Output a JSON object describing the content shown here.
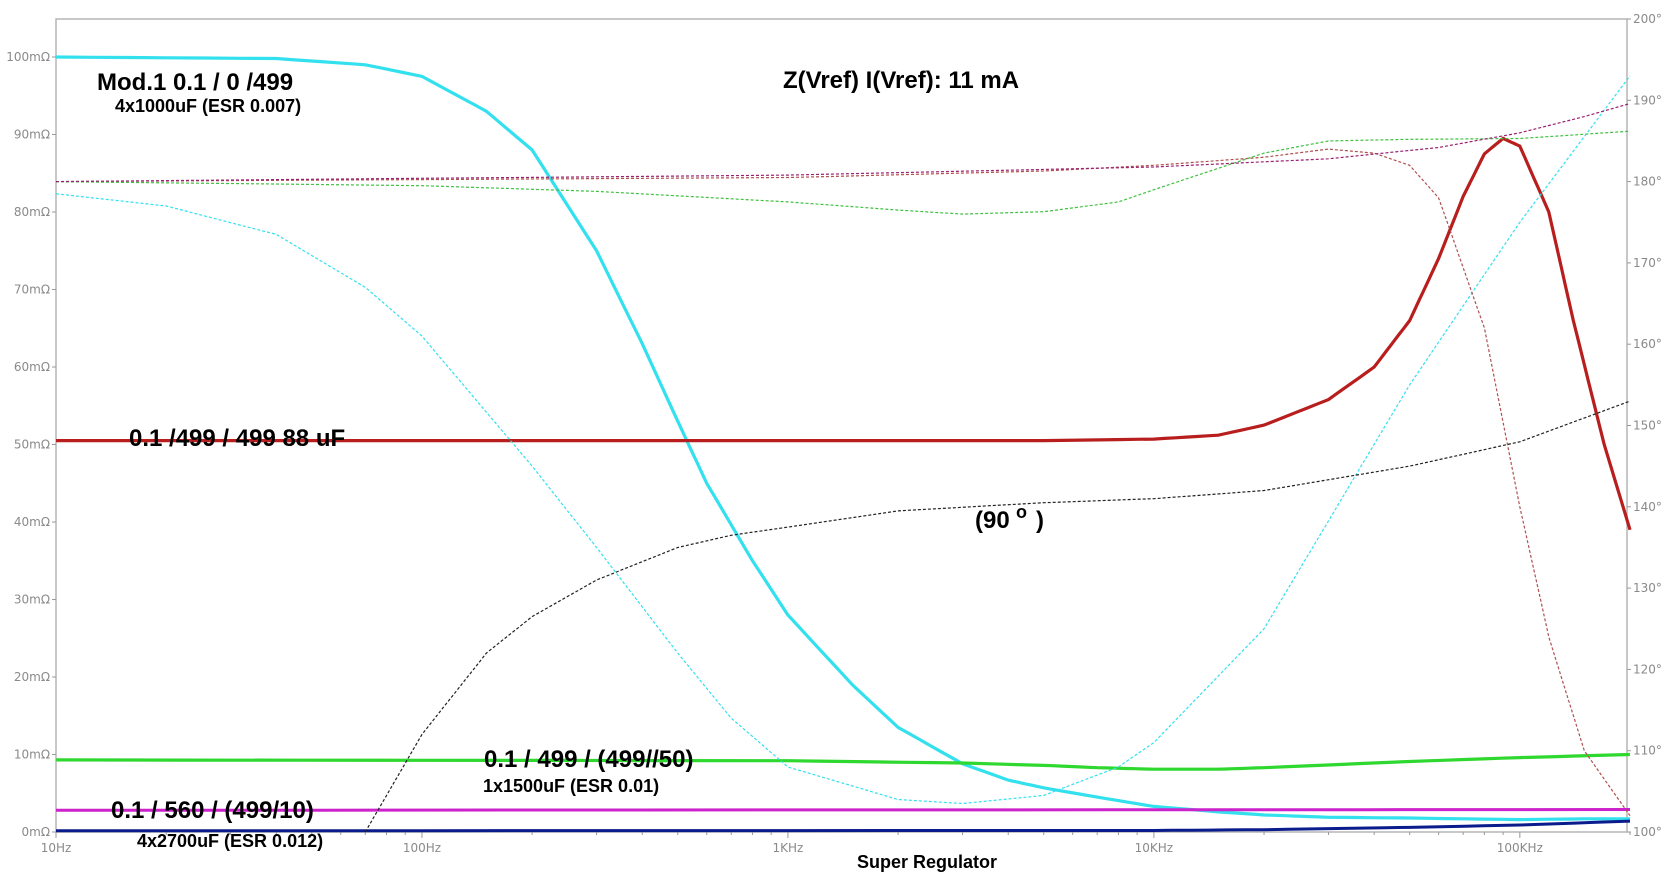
{
  "chart_data": {
    "type": "line",
    "title": "Z(Vref)  I(Vref):  11 mA",
    "x_scale": "log",
    "x_range_hz": [
      10,
      200000
    ],
    "x_ticks": [
      {
        "value": 10,
        "label": "10Hz"
      },
      {
        "value": 100,
        "label": "100Hz"
      },
      {
        "value": 1000,
        "label": "1KHz"
      },
      {
        "value": 10000,
        "label": "10KHz"
      },
      {
        "value": 100000,
        "label": "100KHz"
      }
    ],
    "y_left_range_mohm": [
      0,
      100
    ],
    "y_left_ticks": [
      {
        "value": 0,
        "label": "0mΩ"
      },
      {
        "value": 10,
        "label": "10mΩ"
      },
      {
        "value": 20,
        "label": "20mΩ"
      },
      {
        "value": 30,
        "label": "30mΩ"
      },
      {
        "value": 40,
        "label": "40mΩ"
      },
      {
        "value": 50,
        "label": "50mΩ"
      },
      {
        "value": 60,
        "label": "60mΩ"
      },
      {
        "value": 70,
        "label": "70mΩ"
      },
      {
        "value": 80,
        "label": "80mΩ"
      },
      {
        "value": 90,
        "label": "90mΩ"
      },
      {
        "value": 100,
        "label": "100mΩ"
      }
    ],
    "y_right_range_deg": [
      100,
      200
    ],
    "y_right_ticks": [
      {
        "value": 100,
        "label": "100°"
      },
      {
        "value": 110,
        "label": "110°"
      },
      {
        "value": 120,
        "label": "120°"
      },
      {
        "value": 130,
        "label": "130°"
      },
      {
        "value": 140,
        "label": "140°"
      },
      {
        "value": 150,
        "label": "150°"
      },
      {
        "value": 160,
        "label": "160°"
      },
      {
        "value": 170,
        "label": "170°"
      },
      {
        "value": 180,
        "label": "180°"
      },
      {
        "value": 190,
        "label": "190°"
      },
      {
        "value": 200,
        "label": "200°"
      }
    ],
    "grid": false,
    "series": [
      {
        "key": "cyan_mag",
        "axis": "left",
        "style": "solid",
        "color": "#33e0ee",
        "points": [
          [
            10,
            100
          ],
          [
            40,
            99.8
          ],
          [
            70,
            99
          ],
          [
            100,
            97.5
          ],
          [
            150,
            93
          ],
          [
            200,
            88
          ],
          [
            300,
            75
          ],
          [
            400,
            63
          ],
          [
            500,
            53
          ],
          [
            600,
            45
          ],
          [
            800,
            35
          ],
          [
            1000,
            28
          ],
          [
            1500,
            19
          ],
          [
            2000,
            13.5
          ],
          [
            3000,
            8.8
          ],
          [
            4000,
            6.7
          ],
          [
            5000,
            5.7
          ],
          [
            7000,
            4.5
          ],
          [
            10000,
            3.3
          ],
          [
            15000,
            2.6
          ],
          [
            20000,
            2.2
          ],
          [
            30000,
            1.9
          ],
          [
            50000,
            1.8
          ],
          [
            100000,
            1.6
          ],
          [
            150000,
            1.7
          ],
          [
            200000,
            1.7
          ]
        ]
      },
      {
        "key": "red_mag",
        "axis": "left",
        "style": "solid",
        "color": "#b81e1e",
        "points": [
          [
            10,
            50.5
          ],
          [
            1000,
            50.5
          ],
          [
            5000,
            50.5
          ],
          [
            10000,
            50.7
          ],
          [
            15000,
            51.2
          ],
          [
            20000,
            52.5
          ],
          [
            30000,
            55.8
          ],
          [
            40000,
            60
          ],
          [
            50000,
            66
          ],
          [
            60000,
            74
          ],
          [
            70000,
            82
          ],
          [
            80000,
            87.5
          ],
          [
            90000,
            89.5
          ],
          [
            100000,
            88.5
          ],
          [
            120000,
            80
          ],
          [
            140000,
            66
          ],
          [
            170000,
            50
          ],
          [
            200000,
            39
          ]
        ]
      },
      {
        "key": "green_mag",
        "axis": "left",
        "style": "solid",
        "color": "#2ed82e",
        "points": [
          [
            10,
            9.3
          ],
          [
            1000,
            9.2
          ],
          [
            3000,
            8.9
          ],
          [
            5000,
            8.6
          ],
          [
            7000,
            8.3
          ],
          [
            10000,
            8.1
          ],
          [
            15000,
            8.1
          ],
          [
            20000,
            8.3
          ],
          [
            50000,
            9.1
          ],
          [
            100000,
            9.6
          ],
          [
            200000,
            10.0
          ]
        ]
      },
      {
        "key": "magenta_mag",
        "axis": "left",
        "style": "solid",
        "color": "#cc22cc",
        "points": [
          [
            10,
            2.8
          ],
          [
            200000,
            2.9
          ]
        ]
      },
      {
        "key": "navy_mag",
        "axis": "left",
        "style": "solid",
        "color": "#0a1b8c",
        "points": [
          [
            10,
            0.15
          ],
          [
            10000,
            0.2
          ],
          [
            20000,
            0.3
          ],
          [
            50000,
            0.6
          ],
          [
            100000,
            0.9
          ],
          [
            200000,
            1.4
          ]
        ]
      },
      {
        "key": "cyan_phase",
        "axis": "right",
        "style": "dashed",
        "color": "#33e0ee",
        "points": [
          [
            10,
            178.5
          ],
          [
            20,
            177
          ],
          [
            40,
            173.5
          ],
          [
            70,
            167
          ],
          [
            100,
            161
          ],
          [
            200,
            145
          ],
          [
            300,
            135
          ],
          [
            500,
            122
          ],
          [
            700,
            114
          ],
          [
            1000,
            108
          ],
          [
            2000,
            104
          ],
          [
            3000,
            103.5
          ],
          [
            5000,
            104.5
          ],
          [
            8000,
            108
          ],
          [
            10000,
            111
          ],
          [
            20000,
            125
          ],
          [
            50000,
            155
          ],
          [
            100000,
            175
          ],
          [
            200000,
            193
          ]
        ]
      },
      {
        "key": "red_phase",
        "axis": "right",
        "style": "dashed",
        "color": "#b05050",
        "points": [
          [
            10,
            180
          ],
          [
            1000,
            180.5
          ],
          [
            5000,
            181.3
          ],
          [
            10000,
            182
          ],
          [
            20000,
            183
          ],
          [
            30000,
            184
          ],
          [
            40000,
            183.5
          ],
          [
            50000,
            182
          ],
          [
            60000,
            178
          ],
          [
            80000,
            162
          ],
          [
            100000,
            140
          ],
          [
            120000,
            124
          ],
          [
            150000,
            110
          ],
          [
            200000,
            102
          ]
        ]
      },
      {
        "key": "green_phase",
        "axis": "right",
        "style": "dashed",
        "color": "#40c040",
        "points": [
          [
            10,
            180
          ],
          [
            100,
            179.5
          ],
          [
            300,
            178.8
          ],
          [
            1000,
            177.5
          ],
          [
            2000,
            176.5
          ],
          [
            3000,
            176
          ],
          [
            5000,
            176.3
          ],
          [
            8000,
            177.5
          ],
          [
            10000,
            179
          ],
          [
            20000,
            183.5
          ],
          [
            30000,
            185
          ],
          [
            50000,
            185.2
          ],
          [
            100000,
            185.3
          ],
          [
            200000,
            186.2
          ]
        ]
      },
      {
        "key": "purple_phase",
        "axis": "right",
        "style": "dashed",
        "color": "#9a2070",
        "points": [
          [
            10,
            180
          ],
          [
            1000,
            180.8
          ],
          [
            10000,
            181.8
          ],
          [
            30000,
            182.8
          ],
          [
            60000,
            184.2
          ],
          [
            100000,
            186
          ],
          [
            150000,
            188
          ],
          [
            200000,
            189.6
          ]
        ]
      },
      {
        "key": "black_phase",
        "axis": "right",
        "style": "dashed",
        "color": "#222222",
        "points": [
          [
            70,
            100
          ],
          [
            100,
            112
          ],
          [
            150,
            122
          ],
          [
            200,
            126.5
          ],
          [
            300,
            131
          ],
          [
            500,
            135
          ],
          [
            700,
            136.5
          ],
          [
            1000,
            137.5
          ],
          [
            2000,
            139.5
          ],
          [
            5000,
            140.5
          ],
          [
            10000,
            141
          ],
          [
            20000,
            142
          ],
          [
            50000,
            145
          ],
          [
            100000,
            148
          ],
          [
            200000,
            153
          ]
        ]
      }
    ],
    "annotations": [
      {
        "lines": [
          "Mod.1  0.1 / 0 /499",
          "4x1000uF (ESR 0.007)"
        ]
      },
      {
        "lines": [
          "0.1 /499 / 499  88 uF"
        ]
      },
      {
        "lines": [
          "0.1 / 499 / (499//50)",
          "1x1500uF (ESR 0.01)"
        ]
      },
      {
        "lines": [
          "0.1 / 560 / (499/10)",
          "4x2700uF (ESR 0.012)"
        ]
      },
      {
        "lines": [
          "Super Regulator"
        ]
      },
      {
        "lines": [
          "(90",
          "o",
          " )"
        ]
      }
    ]
  }
}
